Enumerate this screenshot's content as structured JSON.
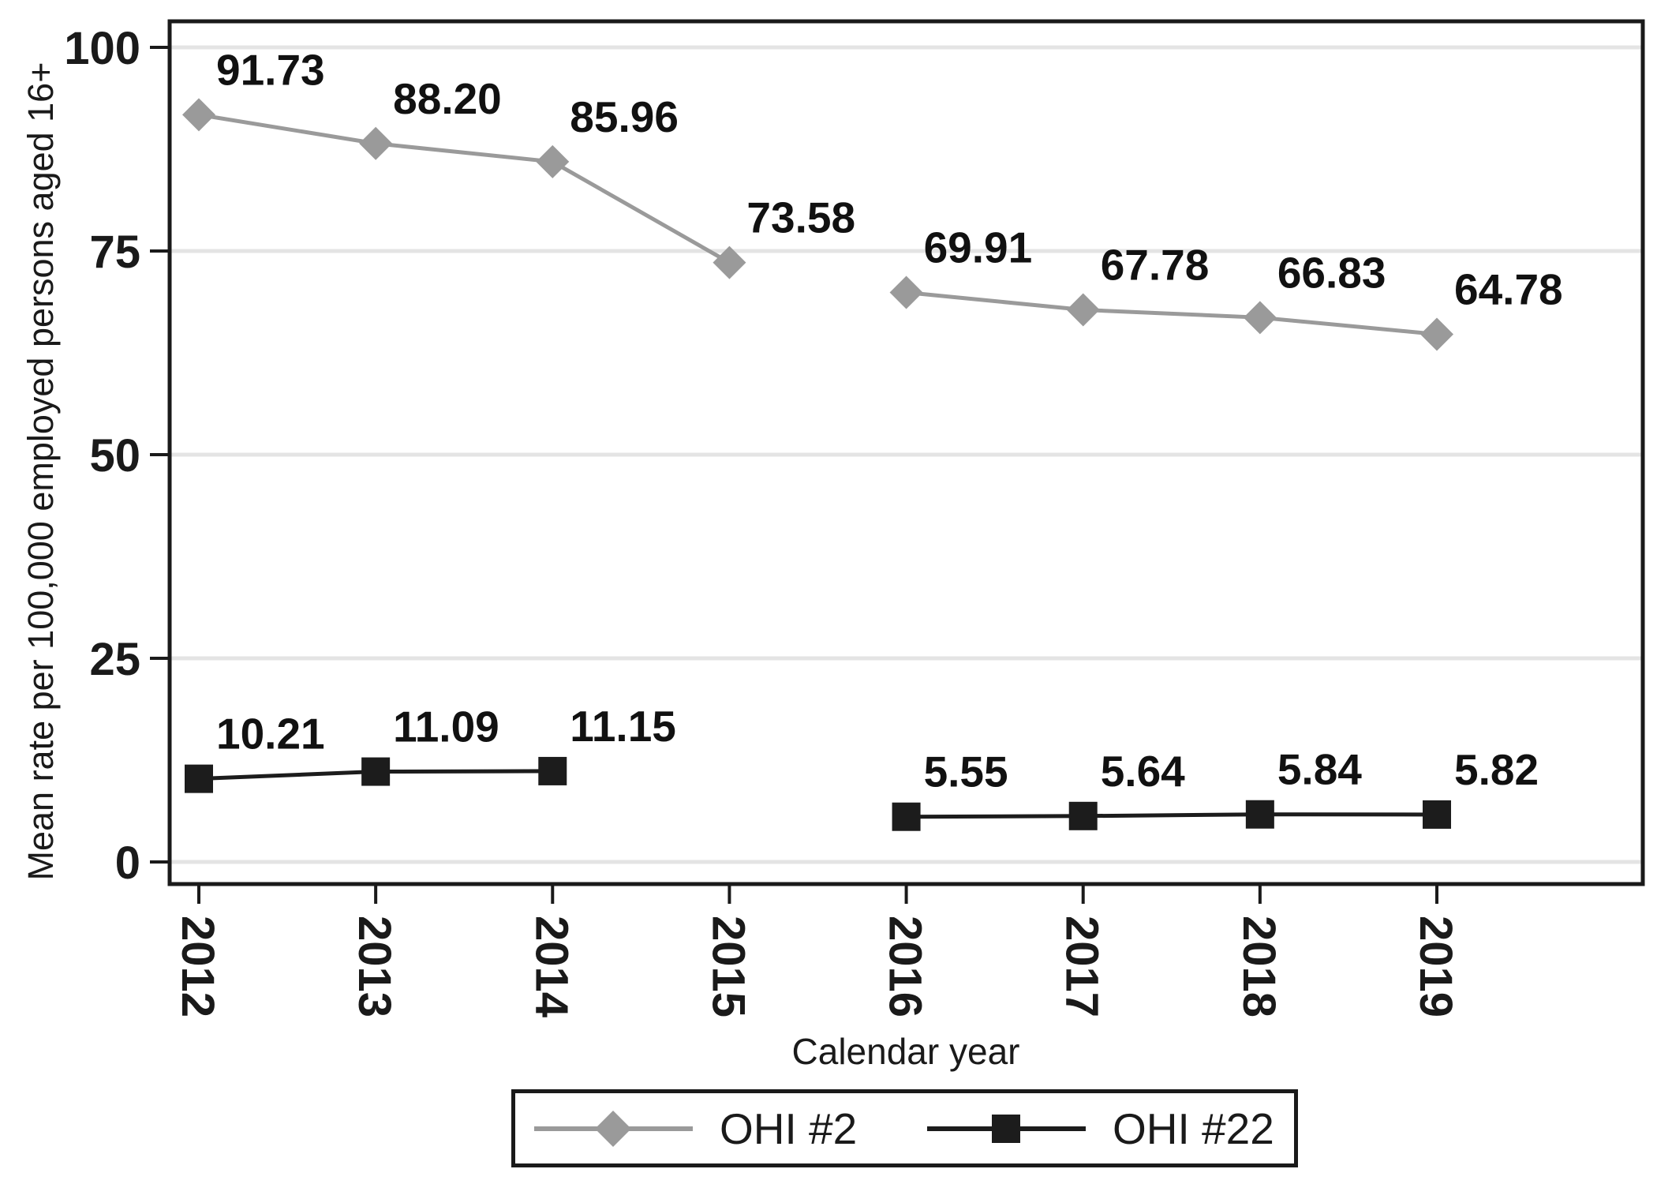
{
  "figure": {
    "background": "#ffffff",
    "frame_color": "#1a1a1a",
    "grid_color": "#e4e4e4",
    "label_color": "#111111"
  },
  "chart_data": {
    "type": "line",
    "title": "",
    "xlabel": "Calendar year",
    "ylabel": "Mean rate per 100,000 employed persons aged 16+",
    "categories": [
      "2012",
      "2013",
      "2014",
      "2015",
      "2016",
      "2017",
      "2018",
      "2019"
    ],
    "ylim": [
      0,
      100
    ],
    "yticks": [
      0,
      25,
      50,
      75,
      100
    ],
    "ytick_labels": [
      "0",
      "25",
      "50",
      "75",
      "100"
    ],
    "grid": true,
    "legend_position": "bottom",
    "series": [
      {
        "name": "OHI #2",
        "color": "#9a9a9a",
        "marker": "diamond",
        "values": [
          91.73,
          88.2,
          85.96,
          73.58,
          69.91,
          67.78,
          66.83,
          64.78
        ],
        "labels": [
          "91.73",
          "88.20",
          "85.96",
          "73.58",
          "69.91",
          "67.78",
          "66.83",
          "64.78"
        ],
        "segments": [
          [
            0,
            3
          ],
          [
            4,
            7
          ]
        ]
      },
      {
        "name": "OHI #22",
        "color": "#1c1c1c",
        "marker": "square",
        "values": [
          10.21,
          11.09,
          11.15,
          null,
          5.55,
          5.64,
          5.84,
          5.82
        ],
        "labels": [
          "10.21",
          "11.09",
          "11.15",
          null,
          "5.55",
          "5.64",
          "5.84",
          "5.82"
        ],
        "segments": [
          [
            0,
            2
          ],
          [
            4,
            7
          ]
        ]
      }
    ]
  }
}
